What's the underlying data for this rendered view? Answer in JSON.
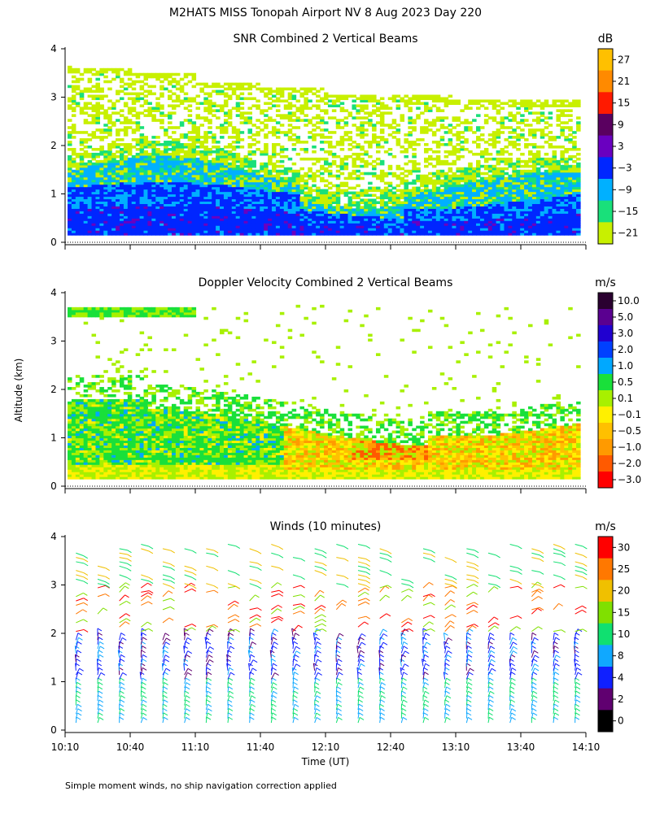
{
  "figure": {
    "title": "M2HATS MISS Tonopah Airport NV   8 Aug 2023 Day 220",
    "footnote": "Simple moment winds, no ship navigation correction applied",
    "y_axis_label": "Altitude (km)",
    "x_axis_label": "Time (UT)"
  },
  "chart_data": [
    {
      "id": "snr",
      "type": "heatmap",
      "title": "SNR Combined 2 Vertical Beams",
      "colorbar": {
        "unit": "dB",
        "labels": [
          "27",
          "21",
          "15",
          "9",
          "3",
          "−3",
          "−9",
          "−15",
          "−21"
        ],
        "colors": [
          "#ffc000",
          "#ff8a00",
          "#ff1a00",
          "#5a0060",
          "#6a00c0",
          "#0026ff",
          "#00b0ff",
          "#19e07a",
          "#c8f000"
        ]
      },
      "xlabel": "",
      "ylabel": "Altitude (km)",
      "xlim": [
        "10:10",
        "14:10"
      ],
      "ylim": [
        0,
        4
      ],
      "yticks": [
        "0",
        "1",
        "2",
        "3",
        "4"
      ],
      "xticks": [
        "10:10",
        "10:40",
        "11:10",
        "11:40",
        "12:10",
        "12:40",
        "13:10",
        "13:40",
        "14:10"
      ],
      "show_xtick_labels": false,
      "top_of_echo_km": [
        3.6,
        3.5,
        3.3,
        3.2,
        3.1,
        3.1,
        3.0,
        3.0,
        3.1
      ],
      "time_axis_hours": [
        10.17,
        10.67,
        11.17,
        11.67,
        12.17,
        12.67,
        13.17,
        13.67,
        14.17
      ]
    },
    {
      "id": "doppler",
      "type": "heatmap",
      "title": "Doppler Velocity Combined 2 Vertical Beams",
      "colorbar": {
        "unit": "m/s",
        "labels": [
          "10.0",
          "5.0",
          "3.0",
          "2.0",
          "1.0",
          "0.5",
          "0.1",
          "−0.1",
          "−0.5",
          "−1.0",
          "−2.0",
          "−3.0"
        ],
        "colors": [
          "#2a0030",
          "#5a0090",
          "#2000d0",
          "#0040ff",
          "#00a8ff",
          "#19e03a",
          "#a8f000",
          "#fff000",
          "#ffc000",
          "#ff9a00",
          "#ff5a00",
          "#ff0000"
        ]
      },
      "xlabel": "",
      "ylabel": "Altitude (km)",
      "xlim": [
        "10:10",
        "14:10"
      ],
      "ylim": [
        0,
        4
      ],
      "yticks": [
        "0",
        "1",
        "2",
        "3",
        "4"
      ],
      "xticks": [
        "10:10",
        "10:40",
        "11:10",
        "11:40",
        "12:10",
        "12:40",
        "13:10",
        "13:40",
        "14:10"
      ],
      "show_xtick_labels": false
    },
    {
      "id": "winds",
      "type": "scatter",
      "title": "Winds (10 minutes)",
      "colorbar": {
        "unit": "m/s",
        "labels": [
          "30",
          "25",
          "20",
          "15",
          "10",
          "8",
          "4",
          "2",
          "0"
        ],
        "colors": [
          "#ff0000",
          "#ff7800",
          "#f0c000",
          "#80e000",
          "#10e070",
          "#10a8ff",
          "#1020ff",
          "#600070",
          "#000000"
        ]
      },
      "xlabel": "Time (UT)",
      "ylabel": "Altitude (km)",
      "xlim": [
        "10:10",
        "14:10"
      ],
      "ylim": [
        0,
        4
      ],
      "yticks": [
        "0",
        "1",
        "2",
        "3",
        "4"
      ],
      "xticks": [
        "10:10",
        "10:40",
        "11:10",
        "11:40",
        "12:10",
        "12:40",
        "13:10",
        "13:40",
        "14:10"
      ],
      "show_xtick_labels": true,
      "profile_interval_minutes": 10
    }
  ]
}
